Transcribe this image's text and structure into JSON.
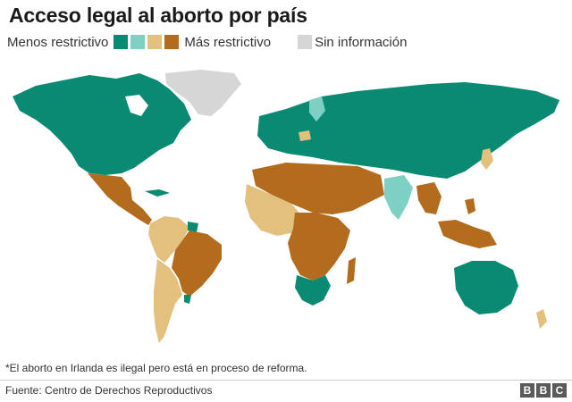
{
  "title": "Acceso legal al aborto por país",
  "legend": {
    "less_label": "Menos restrictivo",
    "more_label": "Más restrictivo",
    "no_info_label": "Sin información",
    "colors": [
      "#0b8a73",
      "#7fd0c4",
      "#e3c07e",
      "#b36b1e"
    ],
    "no_info_color": "#d6d6d6"
  },
  "footnote": "*El aborto en Irlanda es ilegal pero está en proceso de reforma.",
  "source": "Fuente: Centro de Derechos Reproductivos",
  "logo": "BBC",
  "map": {
    "categories": [
      {
        "region": "North America",
        "category": "menos-restrictivo"
      },
      {
        "region": "Greenland",
        "category": "sin-informacion"
      },
      {
        "region": "Mexico",
        "category": "mas-restrictivo"
      },
      {
        "region": "Central America",
        "category": "mas-restrictivo"
      },
      {
        "region": "Colombia / Venezuela / Peru",
        "category": "restrictivo-medio"
      },
      {
        "region": "Brazil / Bolivia / Paraguay",
        "category": "mas-restrictivo"
      },
      {
        "region": "Argentina / Chile",
        "category": "restrictivo-medio"
      },
      {
        "region": "Uruguay",
        "category": "menos-restrictivo"
      },
      {
        "region": "Europe / Russia / Central Asia",
        "category": "menos-restrictivo"
      },
      {
        "region": "China",
        "category": "menos-restrictivo"
      },
      {
        "region": "India",
        "category": "poco-restrictivo"
      },
      {
        "region": "North Africa / Middle East",
        "category": "mas-restrictivo"
      },
      {
        "region": "Sahel / West Africa",
        "category": "restrictivo-medio"
      },
      {
        "region": "Central Africa",
        "category": "mas-restrictivo"
      },
      {
        "region": "South Africa",
        "category": "menos-restrictivo"
      },
      {
        "region": "Australia",
        "category": "menos-restrictivo"
      },
      {
        "region": "Indonesia / Philippines",
        "category": "mas-restrictivo"
      },
      {
        "region": "New Zealand / Japan",
        "category": "restrictivo-medio"
      }
    ]
  }
}
